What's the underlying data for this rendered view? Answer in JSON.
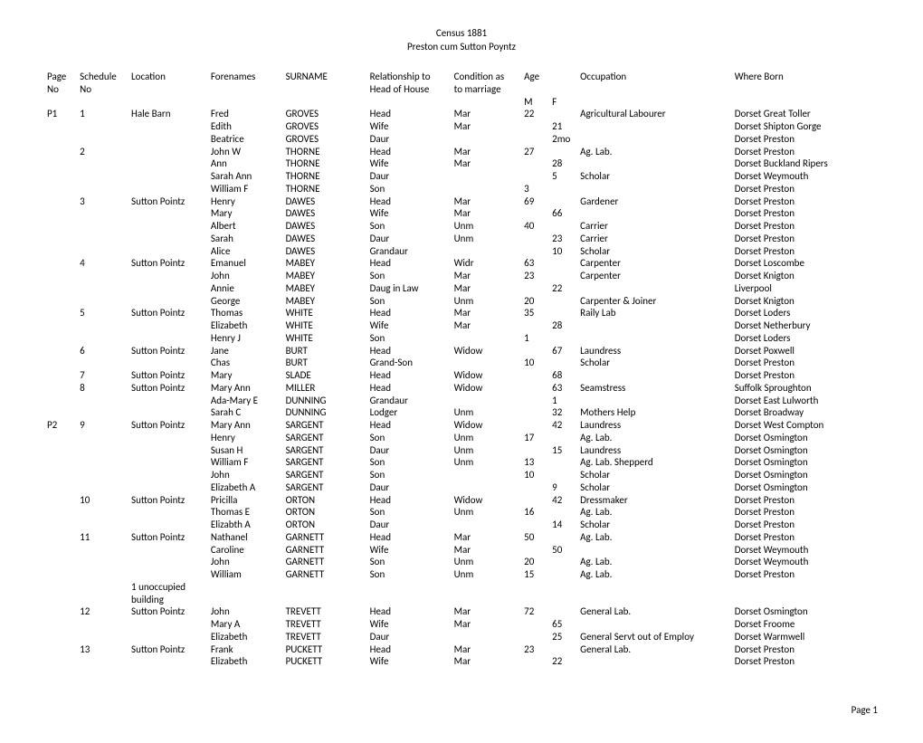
{
  "title": "Census 1881",
  "subtitle": "Preston cum Sutton Poyntz",
  "footer": "Page 1",
  "headers": {
    "page1": "Page",
    "page2": "No",
    "sched1": "Schedule",
    "sched2": "No",
    "loc": "Location",
    "fore": "Forenames",
    "sur": "SURNAME",
    "rel1": "Relationship to",
    "rel2": "Head of House",
    "cond1": "Condition as",
    "cond2": "to marriage",
    "age": "Age",
    "ageM": "M",
    "ageF": "F",
    "occ": "Occupation",
    "born": "Where Born"
  },
  "rows": [
    {
      "page": "P1",
      "sched": "1",
      "loc": "Hale Barn",
      "fore": "Fred",
      "sur": "GROVES",
      "rel": "Head",
      "cond": "Mar",
      "ageM": "22",
      "ageF": "",
      "occ": "Agricultural Labourer",
      "born": "Dorset Great Toller"
    },
    {
      "page": "",
      "sched": "",
      "loc": "",
      "fore": "Edith",
      "sur": "GROVES",
      "rel": "Wife",
      "cond": "Mar",
      "ageM": "",
      "ageF": "21",
      "occ": "",
      "born": "Dorset Shipton Gorge"
    },
    {
      "page": "",
      "sched": "",
      "loc": "",
      "fore": "Beatrice",
      "sur": "GROVES",
      "rel": "Daur",
      "cond": "",
      "ageM": "",
      "ageF": "2mo",
      "occ": "",
      "born": "Dorset Preston"
    },
    {
      "page": "",
      "sched": "2",
      "loc": "",
      "fore": "John W",
      "sur": "THORNE",
      "rel": "Head",
      "cond": "Mar",
      "ageM": "27",
      "ageF": "",
      "occ": "Ag. Lab.",
      "born": "Dorset Preston"
    },
    {
      "page": "",
      "sched": "",
      "loc": "",
      "fore": "Ann",
      "sur": "THORNE",
      "rel": "Wife",
      "cond": "Mar",
      "ageM": "",
      "ageF": "28",
      "occ": "",
      "born": "Dorset Buckland Ripers"
    },
    {
      "page": "",
      "sched": "",
      "loc": "",
      "fore": "Sarah Ann",
      "sur": "THORNE",
      "rel": "Daur",
      "cond": "",
      "ageM": "",
      "ageF": "5",
      "occ": "Scholar",
      "born": "Dorset Weymouth"
    },
    {
      "page": "",
      "sched": "",
      "loc": "",
      "fore": "William F",
      "sur": "THORNE",
      "rel": "Son",
      "cond": "",
      "ageM": "3",
      "ageF": "",
      "occ": "",
      "born": "Dorset Preston"
    },
    {
      "page": "",
      "sched": "3",
      "loc": "Sutton Pointz",
      "fore": "Henry",
      "sur": "DAWES",
      "rel": "Head",
      "cond": "Mar",
      "ageM": "69",
      "ageF": "",
      "occ": "Gardener",
      "born": "Dorset Preston"
    },
    {
      "page": "",
      "sched": "",
      "loc": "",
      "fore": "Mary",
      "sur": "DAWES",
      "rel": "Wife",
      "cond": "Mar",
      "ageM": "",
      "ageF": "66",
      "occ": "",
      "born": "Dorset Preston"
    },
    {
      "page": "",
      "sched": "",
      "loc": "",
      "fore": "Albert",
      "sur": "DAWES",
      "rel": "Son",
      "cond": "Unm",
      "ageM": "40",
      "ageF": "",
      "occ": "Carrier",
      "born": "Dorset Preston"
    },
    {
      "page": "",
      "sched": "",
      "loc": "",
      "fore": "Sarah",
      "sur": "DAWES",
      "rel": "Daur",
      "cond": "Unm",
      "ageM": "",
      "ageF": "23",
      "occ": "Carrier",
      "born": "Dorset Preston"
    },
    {
      "page": "",
      "sched": "",
      "loc": "",
      "fore": "Alice",
      "sur": "DAWES",
      "rel": "Grandaur",
      "cond": "",
      "ageM": "",
      "ageF": "10",
      "occ": "Scholar",
      "born": "Dorset Preston"
    },
    {
      "page": "",
      "sched": "4",
      "loc": "Sutton Pointz",
      "fore": "Emanuel",
      "sur": "MABEY",
      "rel": "Head",
      "cond": "Widr",
      "ageM": "63",
      "ageF": "",
      "occ": "Carpenter",
      "born": "Dorset Loscombe"
    },
    {
      "page": "",
      "sched": "",
      "loc": "",
      "fore": "John",
      "sur": "MABEY",
      "rel": "Son",
      "cond": "Mar",
      "ageM": "23",
      "ageF": "",
      "occ": "Carpenter",
      "born": "Dorset Knigton"
    },
    {
      "page": "",
      "sched": "",
      "loc": "",
      "fore": "Annie",
      "sur": "MABEY",
      "rel": "Daug in Law",
      "cond": "Mar",
      "ageM": "",
      "ageF": "22",
      "occ": "",
      "born": "Liverpool"
    },
    {
      "page": "",
      "sched": "",
      "loc": "",
      "fore": "George",
      "sur": "MABEY",
      "rel": "Son",
      "cond": "Unm",
      "ageM": "20",
      "ageF": "",
      "occ": "Carpenter & Joiner",
      "born": "Dorset Knigton"
    },
    {
      "page": "",
      "sched": "5",
      "loc": "Sutton Pointz",
      "fore": "Thomas",
      "sur": "WHITE",
      "rel": "Head",
      "cond": "Mar",
      "ageM": "35",
      "ageF": "",
      "occ": "Raily Lab",
      "born": "Dorset Loders"
    },
    {
      "page": "",
      "sched": "",
      "loc": "",
      "fore": "Elizabeth",
      "sur": "WHITE",
      "rel": "Wife",
      "cond": "Mar",
      "ageM": "",
      "ageF": "28",
      "occ": "",
      "born": "Dorset Netherbury"
    },
    {
      "page": "",
      "sched": "",
      "loc": "",
      "fore": "Henry J",
      "sur": "WHITE",
      "rel": "Son",
      "cond": "",
      "ageM": "1",
      "ageF": "",
      "occ": "",
      "born": "Dorset Loders"
    },
    {
      "page": "",
      "sched": "6",
      "loc": "Sutton Pointz",
      "fore": "Jane",
      "sur": "BURT",
      "rel": "Head",
      "cond": "Widow",
      "ageM": "",
      "ageF": "67",
      "occ": "Laundress",
      "born": "Dorset Poxwell"
    },
    {
      "page": "",
      "sched": "",
      "loc": "",
      "fore": "Chas",
      "sur": "BURT",
      "rel": "Grand-Son",
      "cond": "",
      "ageM": "10",
      "ageF": "",
      "occ": "Scholar",
      "born": "Dorset Preston"
    },
    {
      "page": "",
      "sched": "7",
      "loc": "Sutton Pointz",
      "fore": "Mary",
      "sur": "SLADE",
      "rel": "Head",
      "cond": "Widow",
      "ageM": "",
      "ageF": "68",
      "occ": "",
      "born": "Dorset Preston"
    },
    {
      "page": "",
      "sched": "8",
      "loc": "Sutton Pointz",
      "fore": "Mary Ann",
      "sur": "MILLER",
      "rel": "Head",
      "cond": "Widow",
      "ageM": "",
      "ageF": "63",
      "occ": "Seamstress",
      "born": "Suffolk Sproughton"
    },
    {
      "page": "",
      "sched": "",
      "loc": "",
      "fore": "Ada-Mary E",
      "sur": "DUNNING",
      "rel": "Grandaur",
      "cond": "",
      "ageM": "",
      "ageF": "1",
      "occ": "",
      "born": "Dorset East Lulworth"
    },
    {
      "page": "",
      "sched": "",
      "loc": "",
      "fore": "Sarah C",
      "sur": "DUNNING",
      "rel": "Lodger",
      "cond": "Unm",
      "ageM": "",
      "ageF": "32",
      "occ": "Mothers Help",
      "born": "Dorset Broadway"
    },
    {
      "page": "P2",
      "sched": "9",
      "loc": "Sutton Pointz",
      "fore": "Mary Ann",
      "sur": "SARGENT",
      "rel": "Head",
      "cond": "Widow",
      "ageM": "",
      "ageF": "42",
      "occ": "Laundress",
      "born": "Dorset West Compton"
    },
    {
      "page": "",
      "sched": "",
      "loc": "",
      "fore": "Henry",
      "sur": "SARGENT",
      "rel": "Son",
      "cond": "Unm",
      "ageM": "17",
      "ageF": "",
      "occ": "Ag. Lab.",
      "born": "Dorset Osmington"
    },
    {
      "page": "",
      "sched": "",
      "loc": "",
      "fore": "Susan H",
      "sur": "SARGENT",
      "rel": "Daur",
      "cond": "Unm",
      "ageM": "",
      "ageF": "15",
      "occ": "Laundress",
      "born": "Dorset Osmington"
    },
    {
      "page": "",
      "sched": "",
      "loc": "",
      "fore": "William F",
      "sur": "SARGENT",
      "rel": "Son",
      "cond": "Unm",
      "ageM": "13",
      "ageF": "",
      "occ": "Ag. Lab. Shepperd",
      "born": "Dorset Osmington"
    },
    {
      "page": "",
      "sched": "",
      "loc": "",
      "fore": "John",
      "sur": "SARGENT",
      "rel": "Son",
      "cond": "",
      "ageM": "10",
      "ageF": "",
      "occ": "Scholar",
      "born": "Dorset Osmington"
    },
    {
      "page": "",
      "sched": "",
      "loc": "",
      "fore": "Elizabeth A",
      "sur": "SARGENT",
      "rel": "Daur",
      "cond": "",
      "ageM": "",
      "ageF": "9",
      "occ": "Scholar",
      "born": "Dorset Osmington"
    },
    {
      "page": "",
      "sched": "10",
      "loc": "Sutton Pointz",
      "fore": "Pricilla",
      "sur": "ORTON",
      "rel": "Head",
      "cond": "Widow",
      "ageM": "",
      "ageF": "42",
      "occ": "Dressmaker",
      "born": "Dorset Preston"
    },
    {
      "page": "",
      "sched": "",
      "loc": "",
      "fore": "Thomas E",
      "sur": "ORTON",
      "rel": "Son",
      "cond": "Unm",
      "ageM": "16",
      "ageF": "",
      "occ": "Ag. Lab.",
      "born": "Dorset Preston"
    },
    {
      "page": "",
      "sched": "",
      "loc": "",
      "fore": "Elizabth A",
      "sur": "ORTON",
      "rel": "Daur",
      "cond": "",
      "ageM": "",
      "ageF": "14",
      "occ": "Scholar",
      "born": "Dorset Preston"
    },
    {
      "page": "",
      "sched": "11",
      "loc": "Sutton Pointz",
      "fore": "Nathanel",
      "sur": "GARNETT",
      "rel": "Head",
      "cond": "Mar",
      "ageM": "50",
      "ageF": "",
      "occ": "Ag. Lab.",
      "born": "Dorset Preston"
    },
    {
      "page": "",
      "sched": "",
      "loc": "",
      "fore": "Caroline",
      "sur": "GARNETT",
      "rel": "Wife",
      "cond": "Mar",
      "ageM": "",
      "ageF": "50",
      "occ": "",
      "born": "Dorset Weymouth"
    },
    {
      "page": "",
      "sched": "",
      "loc": "",
      "fore": "John",
      "sur": "GARNETT",
      "rel": "Son",
      "cond": "Unm",
      "ageM": "20",
      "ageF": "",
      "occ": "Ag. Lab.",
      "born": "Dorset Weymouth"
    },
    {
      "page": "",
      "sched": "",
      "loc": "",
      "fore": "William",
      "sur": "GARNETT",
      "rel": "Son",
      "cond": "Unm",
      "ageM": "15",
      "ageF": "",
      "occ": "Ag. Lab.",
      "born": "Dorset Preston"
    },
    {
      "page": "",
      "sched": "",
      "loc": "1 unoccupied",
      "fore": "",
      "sur": "",
      "rel": "",
      "cond": "",
      "ageM": "",
      "ageF": "",
      "occ": "",
      "born": ""
    },
    {
      "page": "",
      "sched": "",
      "loc": "building",
      "fore": "",
      "sur": "",
      "rel": "",
      "cond": "",
      "ageM": "",
      "ageF": "",
      "occ": "",
      "born": ""
    },
    {
      "page": "",
      "sched": "12",
      "loc": "Sutton Pointz",
      "fore": "John",
      "sur": "TREVETT",
      "rel": "Head",
      "cond": "Mar",
      "ageM": "72",
      "ageF": "",
      "occ": "General Lab.",
      "born": "Dorset Osmington"
    },
    {
      "page": "",
      "sched": "",
      "loc": "",
      "fore": "Mary A",
      "sur": "TREVETT",
      "rel": "Wife",
      "cond": "Mar",
      "ageM": "",
      "ageF": "65",
      "occ": "",
      "born": "Dorset Froome"
    },
    {
      "page": "",
      "sched": "",
      "loc": "",
      "fore": "Elizabeth",
      "sur": "TREVETT",
      "rel": "Daur",
      "cond": "",
      "ageM": "",
      "ageF": "25",
      "occ": "General Servt out of Employ",
      "born": "Dorset Warmwell"
    },
    {
      "page": "",
      "sched": "13",
      "loc": "Sutton Pointz",
      "fore": "Frank",
      "sur": "PUCKETT",
      "rel": "Head",
      "cond": "Mar",
      "ageM": "23",
      "ageF": "",
      "occ": "General Lab.",
      "born": "Dorset Preston"
    },
    {
      "page": "",
      "sched": "",
      "loc": "",
      "fore": "Elizabeth",
      "sur": "PUCKETT",
      "rel": "Wife",
      "cond": "Mar",
      "ageM": "",
      "ageF": "22",
      "occ": "",
      "born": "Dorset Preston"
    }
  ]
}
